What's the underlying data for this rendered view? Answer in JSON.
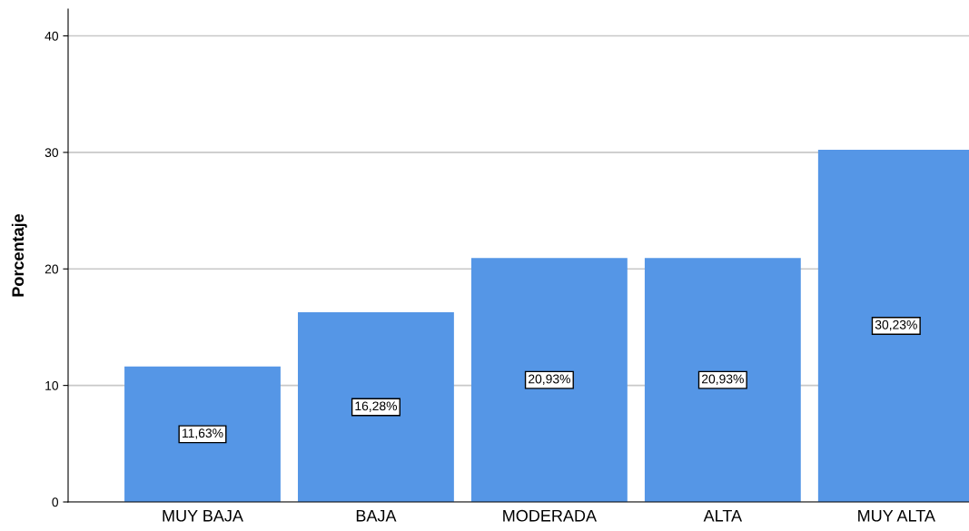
{
  "chart_data": {
    "type": "bar",
    "ylabel": "Porcentaje",
    "categories": [
      "MUY BAJA",
      "BAJA",
      "MODERADA",
      "ALTA",
      "MUY ALTA"
    ],
    "values": [
      11.63,
      16.28,
      20.93,
      20.93,
      30.23
    ],
    "value_labels": [
      "11,63%",
      "16,28%",
      "20,93%",
      "20,93%",
      "30,23%"
    ],
    "color": "#5596e6",
    "ylim": [
      0,
      42.3
    ],
    "yticks": [
      0,
      10,
      20,
      30,
      40
    ],
    "grid": "y",
    "legend": false
  }
}
